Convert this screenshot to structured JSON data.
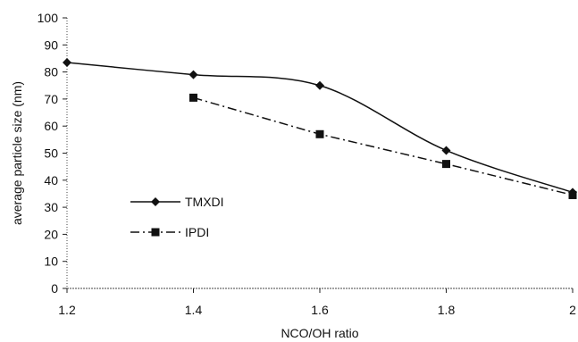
{
  "chart_data": {
    "type": "line",
    "title": "",
    "xlabel": "NCO/OH ratio",
    "ylabel": "average particle size (nm)",
    "x_ticks": [
      "1.2",
      "1.4",
      "1.6",
      "1.8",
      "2"
    ],
    "y_ticks": [
      "0",
      "10",
      "20",
      "30",
      "40",
      "50",
      "60",
      "70",
      "80",
      "90",
      "100"
    ],
    "xlim": [
      1.2,
      2.0
    ],
    "ylim": [
      0,
      100
    ],
    "grid": false,
    "legend_position": "left",
    "series": [
      {
        "name": "TMXDI",
        "marker": "diamond",
        "line_style": "solid",
        "smooth": true,
        "color": "#111111",
        "x": [
          1.2,
          1.4,
          1.6,
          1.8,
          2.0
        ],
        "y": [
          83.5,
          79,
          75,
          51,
          35.5
        ]
      },
      {
        "name": "IPDI",
        "marker": "square",
        "line_style": "dash-dot",
        "smooth": false,
        "color": "#111111",
        "x": [
          1.4,
          1.6,
          1.8,
          2.0
        ],
        "y": [
          70.5,
          57,
          46,
          34.5
        ]
      }
    ]
  }
}
